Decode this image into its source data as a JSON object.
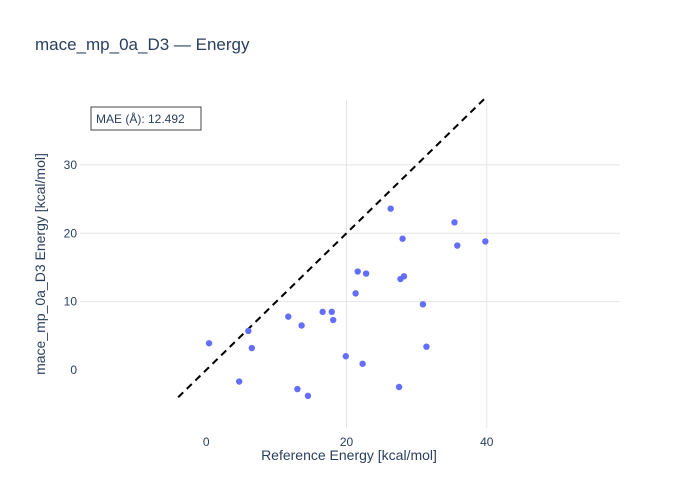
{
  "chart_data": {
    "type": "scatter",
    "title": "mace_mp_0a_D3 — Energy",
    "xlabel": "Reference Energy [kcal/mol]",
    "ylabel": "mace_mp_0a_D3 Energy [kcal/mol]",
    "xlim": [
      -18,
      59
    ],
    "ylim": [
      -8.5,
      39.5
    ],
    "xticks": [
      0,
      20,
      40
    ],
    "yticks": [
      0,
      10,
      20,
      30
    ],
    "grid": true,
    "annotation": "MAE (Å): 12.492",
    "marker_color": "#636efa",
    "reference_line": {
      "style": "dashed",
      "color": "#000000",
      "x": [
        -4,
        40
      ],
      "y": [
        -4,
        40
      ]
    },
    "points": [
      {
        "x": 0.4,
        "y": 3.9
      },
      {
        "x": 4.7,
        "y": -1.7
      },
      {
        "x": 6.0,
        "y": 5.7
      },
      {
        "x": 6.5,
        "y": 3.2
      },
      {
        "x": 11.7,
        "y": 7.8
      },
      {
        "x": 13.0,
        "y": -2.8
      },
      {
        "x": 13.6,
        "y": 6.5
      },
      {
        "x": 14.5,
        "y": -3.8
      },
      {
        "x": 16.6,
        "y": 8.5
      },
      {
        "x": 17.9,
        "y": 8.5
      },
      {
        "x": 18.1,
        "y": 7.3
      },
      {
        "x": 19.9,
        "y": 2.0
      },
      {
        "x": 21.3,
        "y": 11.2
      },
      {
        "x": 21.6,
        "y": 14.4
      },
      {
        "x": 22.3,
        "y": 0.9
      },
      {
        "x": 22.8,
        "y": 14.1
      },
      {
        "x": 26.3,
        "y": 23.6
      },
      {
        "x": 27.5,
        "y": -2.5
      },
      {
        "x": 27.7,
        "y": 13.3
      },
      {
        "x": 28.0,
        "y": 19.2
      },
      {
        "x": 28.2,
        "y": 13.7
      },
      {
        "x": 30.9,
        "y": 9.6
      },
      {
        "x": 31.4,
        "y": 3.4
      },
      {
        "x": 35.4,
        "y": 21.6
      },
      {
        "x": 35.8,
        "y": 18.2
      },
      {
        "x": 39.8,
        "y": 18.8
      }
    ]
  }
}
